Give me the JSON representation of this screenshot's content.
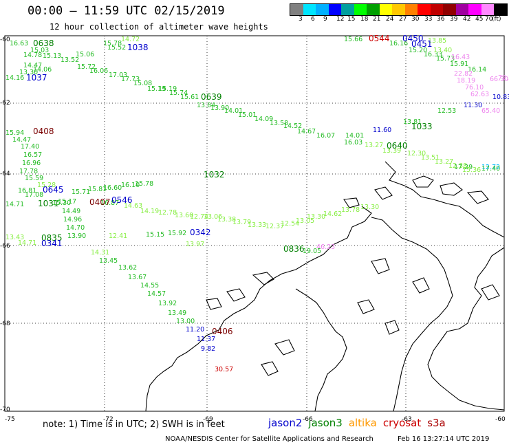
{
  "header": {
    "title": "00:00 – 11:59 UTC 02/15/2019",
    "subtitle": "12 hour collection of altimeter wave heights"
  },
  "legend": {
    "unit": "(ft)",
    "colors": [
      "#808080",
      "#00e5ff",
      "#00b0ff",
      "#0000ff",
      "#009f9f",
      "#00ff00",
      "#00a000",
      "#ffff00",
      "#ffc800",
      "#ff8000",
      "#ff0000",
      "#c00000",
      "#900000",
      "#a000a0",
      "#ff00ff",
      "#ff88ff",
      "#000000"
    ],
    "labels": [
      "3",
      "6",
      "9",
      "12",
      "15",
      "18",
      "21",
      "24",
      "27",
      "30",
      "33",
      "36",
      "39",
      "42",
      "45",
      "70"
    ]
  },
  "axes": {
    "lon_labels": [
      "-75",
      "-72",
      "-69",
      "-66",
      "-63",
      "-60"
    ],
    "lat_labels": [
      "-60",
      "-62",
      "-64",
      "-66",
      "-68",
      "-70"
    ]
  },
  "passes": [
    {
      "time": "0638",
      "color": "#008000"
    },
    {
      "time": "1038",
      "color": "#0000cc"
    },
    {
      "time": "1037",
      "color": "#0000cc"
    },
    {
      "time": "0639",
      "color": "#008000"
    },
    {
      "time": "0408",
      "color": "#7a0000"
    },
    {
      "time": "0544",
      "color": "#cc0000"
    },
    {
      "time": "0450",
      "color": "#0000cc"
    },
    {
      "time": "0451",
      "color": "#0000cc"
    },
    {
      "time": "1033",
      "color": "#008000"
    },
    {
      "time": "0640",
      "color": "#008000"
    },
    {
      "time": "1032",
      "color": "#008000"
    },
    {
      "time": "0645",
      "color": "#0000cc"
    },
    {
      "time": "1031",
      "color": "#008000"
    },
    {
      "time": "0546",
      "color": "#0000cc"
    },
    {
      "time": "0407",
      "color": "#7a0000"
    },
    {
      "time": "0835",
      "color": "#008000"
    },
    {
      "time": "0341",
      "color": "#0000cc"
    },
    {
      "time": "0342",
      "color": "#0000cc"
    },
    {
      "time": "0836",
      "color": "#008000"
    },
    {
      "time": "0406",
      "color": "#7a0000"
    }
  ],
  "waves": [
    {
      "text": "16.63",
      "color": "#22bb22"
    },
    {
      "text": "15.03",
      "color": "#22bb22"
    },
    {
      "text": "14.78",
      "color": "#22bb22"
    },
    {
      "text": "15.13",
      "color": "#22bb22"
    },
    {
      "text": "15.06",
      "color": "#22bb22"
    },
    {
      "text": "14.47",
      "color": "#22bb22"
    },
    {
      "text": "15.78",
      "color": "#22bb22"
    },
    {
      "text": "15.52",
      "color": "#22bb22"
    },
    {
      "text": "14.72",
      "color": "#88ee44"
    },
    {
      "text": "14.06",
      "color": "#22bb22"
    },
    {
      "text": "13.30",
      "color": "#22bb22"
    },
    {
      "text": "13.52",
      "color": "#22bb22"
    },
    {
      "text": "15.72",
      "color": "#22bb22"
    },
    {
      "text": "16.06",
      "color": "#22bb22"
    },
    {
      "text": "14.16",
      "color": "#22bb22"
    },
    {
      "text": "17.03",
      "color": "#22bb22"
    },
    {
      "text": "17.73",
      "color": "#22bb22"
    },
    {
      "text": "15.08",
      "color": "#22bb22"
    },
    {
      "text": "15.19",
      "color": "#22bb22"
    },
    {
      "text": "15.19",
      "color": "#22bb22"
    },
    {
      "text": "15.74",
      "color": "#22bb22"
    },
    {
      "text": "15.61",
      "color": "#22bb22"
    },
    {
      "text": "13.84",
      "color": "#22bb22"
    },
    {
      "text": "13.90",
      "color": "#22bb22"
    },
    {
      "text": "14.01",
      "color": "#22bb22"
    },
    {
      "text": "15.01",
      "color": "#22bb22"
    },
    {
      "text": "14.09",
      "color": "#22bb22"
    },
    {
      "text": "13.58",
      "color": "#22bb22"
    },
    {
      "text": "14.52",
      "color": "#22bb22"
    },
    {
      "text": "14.67",
      "color": "#22bb22"
    },
    {
      "text": "16.07",
      "color": "#22bb22"
    },
    {
      "text": "14.01",
      "color": "#22bb22"
    },
    {
      "text": "16.03",
      "color": "#22bb22"
    },
    {
      "text": "15.66",
      "color": "#22bb22"
    },
    {
      "text": "16.16",
      "color": "#22bb22"
    },
    {
      "text": "15.20",
      "color": "#22bb22"
    },
    {
      "text": "16.33",
      "color": "#22bb22"
    },
    {
      "text": "15.73",
      "color": "#22bb22"
    },
    {
      "text": "15.91",
      "color": "#22bb22"
    },
    {
      "text": "16.14",
      "color": "#22bb22"
    },
    {
      "text": "13.81",
      "color": "#22bb22"
    },
    {
      "text": "12.53",
      "color": "#22bb22"
    },
    {
      "text": "13.27",
      "color": "#88ee44"
    },
    {
      "text": "13.39",
      "color": "#88ee44"
    },
    {
      "text": "12.30",
      "color": "#88ee44"
    },
    {
      "text": "13.51",
      "color": "#88ee44"
    },
    {
      "text": "13.27",
      "color": "#88ee44"
    },
    {
      "text": "12.38",
      "color": "#88ee44"
    },
    {
      "text": "15.36",
      "color": "#88ee44"
    },
    {
      "text": "17.29",
      "color": "#22bb22"
    },
    {
      "text": "12.72",
      "color": "#00bbff"
    },
    {
      "text": "11.60",
      "color": "#0000cc"
    },
    {
      "text": "11.30",
      "color": "#0000cc"
    },
    {
      "text": "10.83",
      "color": "#0000cc"
    },
    {
      "text": "15.94",
      "color": "#22bb22"
    },
    {
      "text": "14.47",
      "color": "#22bb22"
    },
    {
      "text": "17.40",
      "color": "#22bb22"
    },
    {
      "text": "16.57",
      "color": "#22bb22"
    },
    {
      "text": "16.96",
      "color": "#22bb22"
    },
    {
      "text": "17.78",
      "color": "#22bb22"
    },
    {
      "text": "15.59",
      "color": "#22bb22"
    },
    {
      "text": "15.28",
      "color": "#88ee44"
    },
    {
      "text": "16.81",
      "color": "#22bb22"
    },
    {
      "text": "17.08",
      "color": "#22bb22"
    },
    {
      "text": "14.71",
      "color": "#22bb22"
    },
    {
      "text": "15.30",
      "color": "#22bb22"
    },
    {
      "text": "15.17",
      "color": "#22bb22"
    },
    {
      "text": "15.71",
      "color": "#22bb22"
    },
    {
      "text": "15.81",
      "color": "#22bb22"
    },
    {
      "text": "16.60",
      "color": "#22bb22"
    },
    {
      "text": "16.10",
      "color": "#22bb22"
    },
    {
      "text": "15.78",
      "color": "#22bb22"
    },
    {
      "text": "14.49",
      "color": "#22bb22"
    },
    {
      "text": "14.96",
      "color": "#22bb22"
    },
    {
      "text": "14.70",
      "color": "#22bb22"
    },
    {
      "text": "13.90",
      "color": "#22bb22"
    },
    {
      "text": "16.87",
      "color": "#22bb22"
    },
    {
      "text": "14.63",
      "color": "#88ee44"
    },
    {
      "text": "14.19",
      "color": "#88ee44"
    },
    {
      "text": "12.78",
      "color": "#88ee44"
    },
    {
      "text": "13.60",
      "color": "#88ee44"
    },
    {
      "text": "12.74",
      "color": "#88ee44"
    },
    {
      "text": "13.06",
      "color": "#88ee44"
    },
    {
      "text": "13.38",
      "color": "#88ee44"
    },
    {
      "text": "13.79",
      "color": "#88ee44"
    },
    {
      "text": "13.33",
      "color": "#88ee44"
    },
    {
      "text": "12.37",
      "color": "#88ee44"
    },
    {
      "text": "12.54",
      "color": "#88ee44"
    },
    {
      "text": "13.05",
      "color": "#88ee44"
    },
    {
      "text": "13.30",
      "color": "#88ee44"
    },
    {
      "text": "14.62",
      "color": "#88ee44"
    },
    {
      "text": "13.78",
      "color": "#88ee44"
    },
    {
      "text": "13.30",
      "color": "#88ee44"
    },
    {
      "text": "13.43",
      "color": "#88ee44"
    },
    {
      "text": "14.71",
      "color": "#88ee44"
    },
    {
      "text": "12.41",
      "color": "#88ee44"
    },
    {
      "text": "15.15",
      "color": "#22bb22"
    },
    {
      "text": "15.92",
      "color": "#22bb22"
    },
    {
      "text": "13.97",
      "color": "#88ee44"
    },
    {
      "text": "14.31",
      "color": "#88ee44"
    },
    {
      "text": "13.45",
      "color": "#22bb22"
    },
    {
      "text": "13.62",
      "color": "#22bb22"
    },
    {
      "text": "13.67",
      "color": "#22bb22"
    },
    {
      "text": "14.55",
      "color": "#22bb22"
    },
    {
      "text": "14.57",
      "color": "#22bb22"
    },
    {
      "text": "13.92",
      "color": "#22bb22"
    },
    {
      "text": "13.49",
      "color": "#22bb22"
    },
    {
      "text": "13.00",
      "color": "#22bb22"
    },
    {
      "text": "11.20",
      "color": "#0000cc"
    },
    {
      "text": "11.37",
      "color": "#0000cc"
    },
    {
      "text": "9.82",
      "color": "#0000cc"
    },
    {
      "text": "30.57",
      "color": "#cc0000"
    },
    {
      "text": "46.23",
      "color": "#ee88ee"
    },
    {
      "text": "19.05",
      "color": "#22bb22"
    },
    {
      "text": "13.85",
      "color": "#88ee44"
    },
    {
      "text": "13.40",
      "color": "#88ee44"
    },
    {
      "text": "16.43",
      "color": "#ee88ee"
    },
    {
      "text": "22.82",
      "color": "#ee88ee"
    },
    {
      "text": "18.19",
      "color": "#ee88ee"
    },
    {
      "text": "76.10",
      "color": "#ee88ee"
    },
    {
      "text": "62.63",
      "color": "#ee88ee"
    },
    {
      "text": "65.40",
      "color": "#ee88ee"
    },
    {
      "text": "72.21",
      "color": "#ee88ee"
    },
    {
      "text": "66.30",
      "color": "#ee88ee"
    },
    {
      "text": "17.40",
      "color": "#22bb22"
    },
    {
      "text": "15.73",
      "color": "#22bb22"
    },
    {
      "text": "12.72",
      "color": "#00bbff"
    }
  ],
  "note": "note: 1) Time is in UTC; 2) SWH is in feet",
  "missions": [
    {
      "name": "jason2",
      "color": "#0000cc"
    },
    {
      "name": "jason3",
      "color": "#008000"
    },
    {
      "name": "altika",
      "color": "#ff9900"
    },
    {
      "name": "cryosat",
      "color": "#cc0000"
    },
    {
      "name": "s3a",
      "color": "#aa0000"
    }
  ],
  "footer": {
    "credit": "NOAA/NESDIS Center for Satellite Applications and Research",
    "generated": "Feb 16 13:27:14 UTC 2019"
  }
}
